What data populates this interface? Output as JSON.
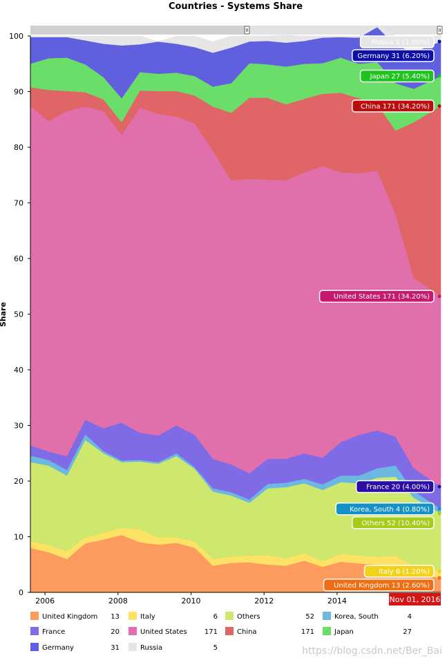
{
  "chart_data": {
    "type": "area",
    "stacked": true,
    "title": "Countries - Systems Share",
    "xlabel": "",
    "ylabel": "Share",
    "ylim": [
      0,
      100
    ],
    "xlim": [
      2005.6,
      2016.84
    ],
    "y_ticks": [
      0,
      10,
      20,
      30,
      40,
      50,
      60,
      70,
      80,
      90,
      100
    ],
    "x_ticks": [
      2006,
      2008,
      2010,
      2012,
      2014
    ],
    "x_tick_labels": [
      "2006",
      "2008",
      "2010",
      "2012",
      "2014"
    ],
    "cursor_label": "Nov 01, 2016",
    "cursor_x": 2016.84,
    "watermark": "https://blog.csdn.net/Ber_Bai",
    "x": [
      2005.6,
      2006.1,
      2006.6,
      2007.1,
      2007.6,
      2008.1,
      2008.6,
      2009.1,
      2009.6,
      2010.1,
      2010.6,
      2011.1,
      2011.6,
      2012.1,
      2012.6,
      2013.1,
      2013.6,
      2014.1,
      2014.6,
      2015.1,
      2015.6,
      2016.1,
      2016.84
    ],
    "series": [
      {
        "name": "United Kingdom",
        "color": "#fd9b5f",
        "count": 13,
        "label": "United Kingdom 13 (2.60%)",
        "values": [
          8.0,
          7.2,
          6.0,
          8.8,
          9.5,
          10.3,
          9.0,
          8.6,
          8.9,
          8.0,
          4.8,
          5.3,
          5.4,
          5.0,
          4.8,
          5.7,
          4.6,
          5.5,
          5.2,
          5.0,
          5.0,
          3.5,
          2.6
        ]
      },
      {
        "name": "Italy",
        "color": "#fde265",
        "count": 6,
        "label": "Italy 6 (1.20%)",
        "values": [
          1.2,
          1.3,
          1.4,
          1.0,
          1.2,
          1.3,
          2.3,
          1.3,
          1.0,
          1.1,
          1.2,
          1.1,
          1.2,
          1.7,
          1.3,
          1.3,
          1.0,
          1.4,
          1.4,
          1.4,
          1.6,
          1.2,
          1.2
        ]
      },
      {
        "name": "Others",
        "color": "#cde86c",
        "count": 52,
        "label": "Others 52 (10.40%)",
        "values": [
          14.2,
          14.3,
          13.6,
          17.6,
          14.3,
          11.8,
          12.2,
          13.2,
          14.6,
          13.1,
          12.1,
          11.0,
          9.5,
          12.0,
          12.8,
          12.6,
          12.8,
          12.9,
          13.0,
          14.2,
          14.2,
          12.3,
          10.4
        ]
      },
      {
        "name": "Korea, South",
        "color": "#6cb8e0",
        "count": 4,
        "label": "Korea, South 4 (0.80%)",
        "values": [
          1.2,
          1.0,
          1.0,
          1.0,
          0.4,
          0.3,
          0.3,
          0.3,
          0.5,
          0.3,
          0.6,
          0.6,
          0.6,
          0.8,
          0.8,
          0.8,
          1.0,
          1.2,
          1.4,
          1.7,
          2.0,
          1.2,
          0.8
        ]
      },
      {
        "name": "France",
        "color": "#7f6be6",
        "count": 20,
        "label": "France 20 (4.00%)",
        "values": [
          1.8,
          1.5,
          2.5,
          2.6,
          4.1,
          6.8,
          4.9,
          4.8,
          5.0,
          5.8,
          5.3,
          5.0,
          4.7,
          4.5,
          4.3,
          4.6,
          4.8,
          6.0,
          7.3,
          6.8,
          5.2,
          4.1,
          4.0
        ]
      },
      {
        "name": "United States",
        "color": "#e16fab",
        "count": 171,
        "label": "United States 171 (34.20%)",
        "values": [
          61.0,
          59.4,
          62.0,
          56.3,
          57.0,
          51.7,
          58.4,
          57.8,
          55.5,
          56.0,
          55.3,
          51.0,
          52.9,
          50.2,
          50.0,
          50.5,
          52.4,
          48.5,
          47.0,
          46.7,
          40.0,
          34.2,
          34.2
        ]
      },
      {
        "name": "China",
        "color": "#e06567",
        "count": 171,
        "label": "China 171 (34.20%)",
        "values": [
          3.4,
          5.6,
          3.6,
          2.6,
          2.1,
          2.3,
          3.1,
          4.1,
          4.6,
          5.0,
          8.0,
          12.2,
          14.6,
          14.7,
          13.7,
          13.2,
          13.0,
          14.3,
          13.5,
          12.0,
          15.0,
          28.0,
          34.2
        ]
      },
      {
        "name": "Japan",
        "color": "#6bde6a",
        "count": 27,
        "label": "Japan 27 (5.40%)",
        "values": [
          4.2,
          5.7,
          6.0,
          5.0,
          4.0,
          4.3,
          3.3,
          3.1,
          3.3,
          3.5,
          3.6,
          5.3,
          6.2,
          6.0,
          6.8,
          6.3,
          5.5,
          6.3,
          6.2,
          7.5,
          8.5,
          6.0,
          5.4
        ]
      },
      {
        "name": "Germany",
        "color": "#6060de",
        "count": 31,
        "label": "Germany 31 (6.20%)",
        "values": [
          4.8,
          3.8,
          3.7,
          4.3,
          6.0,
          9.5,
          5.0,
          5.8,
          5.2,
          5.2,
          6.1,
          6.4,
          3.9,
          4.2,
          4.3,
          4.1,
          4.6,
          3.7,
          4.7,
          6.3,
          6.8,
          6.6,
          6.2
        ]
      },
      {
        "name": "Russia",
        "color": "#e6e6e6",
        "count": 5,
        "label": "Russia 5 (1.00%)",
        "values": [
          0.2,
          0.2,
          0.2,
          0.8,
          1.4,
          1.7,
          1.5,
          0.0,
          1.4,
          2.0,
          2.0,
          2.1,
          1.0,
          0.9,
          1.4,
          0.9,
          0.3,
          0.2,
          0.3,
          0.4,
          1.7,
          2.9,
          1.0
        ]
      }
    ],
    "legend": [
      [
        "United Kingdom",
        "Italy",
        "Others",
        "Korea, South"
      ],
      [
        "France",
        "United States",
        "China",
        "Japan"
      ],
      [
        "Germany",
        "Russia"
      ]
    ],
    "tooltip_colors": {
      "Russia": "#e6e6e6",
      "Germany": "#0e0ea8",
      "Japan": "#1fc21f",
      "China": "#bb0d0d",
      "United States": "#c7196f",
      "France": "#2b0fa5",
      "Korea, South": "#1491c5",
      "Others": "#a5cc1a",
      "Italy": "#f2d21b",
      "United Kingdom": "#ef6e13"
    }
  }
}
